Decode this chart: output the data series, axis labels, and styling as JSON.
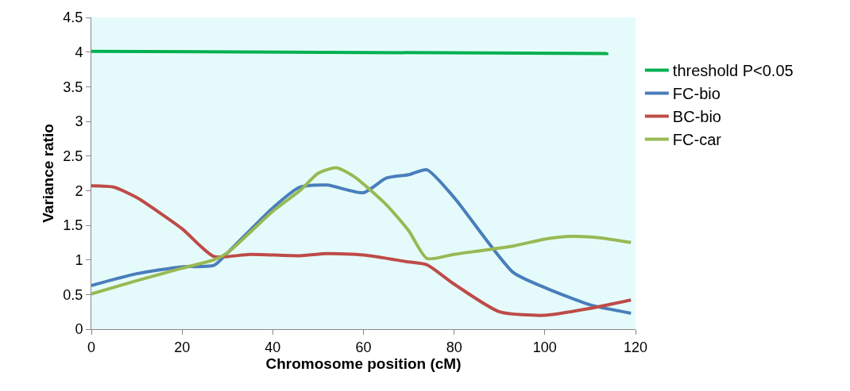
{
  "chart_data": {
    "type": "line",
    "xlabel": "Chromosome position (cM)",
    "ylabel": "Variance ratio",
    "xlim": [
      0,
      120
    ],
    "xticks": [
      0,
      20,
      40,
      60,
      80,
      100,
      120
    ],
    "ylim": [
      0,
      4.5
    ],
    "yticks": [
      0,
      0.5,
      1,
      1.5,
      2,
      2.5,
      3,
      3.5,
      4,
      4.5
    ],
    "grid": false,
    "legend": "right",
    "marker": "none",
    "line_style": "solid",
    "series": [
      {
        "name": "threshold P<0.05",
        "color": "#00b050",
        "x": [
          0,
          114
        ],
        "values": [
          4.01,
          3.98
        ]
      },
      {
        "name": "FC-bio",
        "color": "#4a7ebb",
        "x": [
          0,
          10,
          20,
          27,
          30,
          40,
          46,
          52,
          60,
          65,
          70,
          74,
          80,
          93,
          100,
          110,
          119
        ],
        "values": [
          0.63,
          0.8,
          0.9,
          0.92,
          1.1,
          1.75,
          2.05,
          2.08,
          1.97,
          2.18,
          2.23,
          2.3,
          1.9,
          0.82,
          0.6,
          0.35,
          0.23
        ]
      },
      {
        "name": "BC-bio",
        "color": "#be4b48",
        "x": [
          0,
          5,
          10,
          20,
          27,
          35,
          46,
          52,
          60,
          70,
          74,
          80,
          90,
          100,
          110,
          119
        ],
        "values": [
          2.07,
          2.05,
          1.9,
          1.45,
          1.05,
          1.08,
          1.06,
          1.09,
          1.07,
          0.97,
          0.93,
          0.65,
          0.25,
          0.2,
          0.3,
          0.42
        ]
      },
      {
        "name": "FC-car",
        "color": "#98b954",
        "x": [
          0,
          10,
          20,
          27,
          30,
          40,
          46,
          50,
          54,
          58,
          65,
          70,
          74,
          80,
          93,
          100,
          106,
          112,
          119
        ],
        "values": [
          0.51,
          0.7,
          0.88,
          1.0,
          1.1,
          1.7,
          2.0,
          2.25,
          2.33,
          2.2,
          1.8,
          1.42,
          1.02,
          1.08,
          1.2,
          1.3,
          1.34,
          1.32,
          1.25
        ]
      }
    ]
  }
}
